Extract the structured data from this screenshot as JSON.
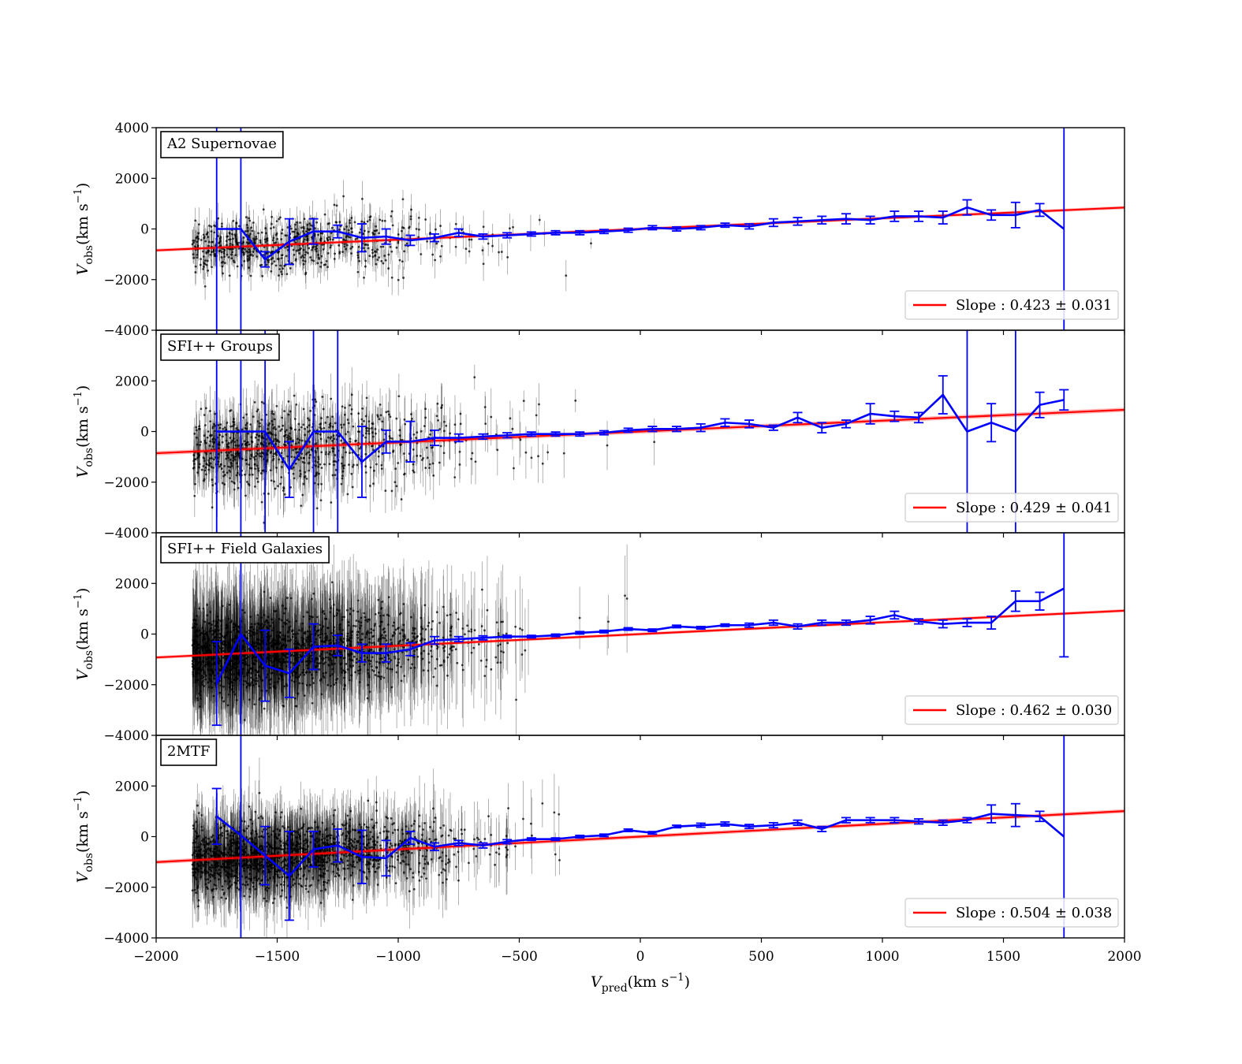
{
  "figure": {
    "xlabel_main": "V",
    "xlabel_sub": "pred",
    "xlabel_unit": "(km s",
    "xlabel_exp": "−1",
    "xlabel_close": ")",
    "ylabel_main": "V",
    "ylabel_sub": "obs",
    "ylabel_unit": "(km s",
    "ylabel_exp": "−1",
    "ylabel_close": ")",
    "legend_label": "Slope :"
  },
  "chart_data": [
    {
      "type": "scatter",
      "title": "A2 Supernovae",
      "xlim": [
        -2000,
        2000
      ],
      "ylim": [
        -4000,
        4000
      ],
      "xticks": [
        -2000,
        -1500,
        -1000,
        -500,
        0,
        500,
        1000,
        1500,
        2000
      ],
      "xtick_labels": [
        "−2000",
        "−1500",
        "−1000",
        "−500",
        "0",
        "500",
        "1000",
        "1500",
        "2000"
      ],
      "yticks": [
        -4000,
        -2000,
        0,
        2000,
        4000
      ],
      "ytick_labels": [
        "−4000",
        "−2000",
        "0",
        "2000",
        "4000"
      ],
      "scatter_spread": 550,
      "scatter_error": 500,
      "scatter_count": 650,
      "fit": {
        "slope": 0.423,
        "slope_err": 0.031,
        "slope_text": "0.423 ± 0.031",
        "color": "#ff0000"
      },
      "binned": {
        "color": "#0000ff",
        "x": [
          -1750,
          -1650,
          -1550,
          -1450,
          -1350,
          -1250,
          -1150,
          -1050,
          -950,
          -850,
          -750,
          -650,
          -550,
          -450,
          -350,
          -250,
          -150,
          -50,
          50,
          150,
          250,
          350,
          450,
          550,
          650,
          750,
          850,
          950,
          1050,
          1150,
          1250,
          1350,
          1450,
          1550,
          1650,
          1750
        ],
        "y": [
          0,
          0,
          -1200,
          -500,
          -100,
          -100,
          -350,
          -300,
          -450,
          -350,
          -150,
          -300,
          -250,
          -200,
          -150,
          -150,
          -100,
          -50,
          50,
          0,
          50,
          150,
          100,
          250,
          300,
          350,
          400,
          350,
          500,
          500,
          450,
          850,
          550,
          550,
          750,
          0
        ],
        "err": [
          9000,
          9000,
          300,
          900,
          500,
          250,
          550,
          300,
          200,
          150,
          150,
          100,
          100,
          80,
          80,
          80,
          80,
          80,
          80,
          80,
          80,
          80,
          100,
          150,
          150,
          150,
          200,
          150,
          200,
          200,
          250,
          300,
          200,
          500,
          250,
          9000
        ]
      }
    },
    {
      "type": "scatter",
      "title": "SFI++ Groups",
      "xlim": [
        -2000,
        2000
      ],
      "ylim": [
        -4000,
        4000
      ],
      "xticks": [
        -2000,
        -1500,
        -1000,
        -500,
        0,
        500,
        1000,
        1500,
        2000
      ],
      "xtick_labels": [
        "−2000",
        "−1500",
        "−1000",
        "−500",
        "0",
        "500",
        "1000",
        "1500",
        "2000"
      ],
      "yticks": [
        -4000,
        -2000,
        0,
        2000
      ],
      "ytick_labels": [
        "−4000",
        "−2000",
        "0",
        "2000"
      ],
      "scatter_spread": 800,
      "scatter_error": 800,
      "scatter_count": 850,
      "fit": {
        "slope": 0.429,
        "slope_err": 0.041,
        "slope_text": "0.429 ± 0.041",
        "color": "#ff0000"
      },
      "binned": {
        "color": "#0000ff",
        "x": [
          -1750,
          -1650,
          -1550,
          -1450,
          -1350,
          -1250,
          -1150,
          -1050,
          -950,
          -850,
          -750,
          -650,
          -550,
          -450,
          -350,
          -250,
          -150,
          -50,
          50,
          150,
          250,
          350,
          450,
          550,
          650,
          750,
          850,
          950,
          1050,
          1150,
          1250,
          1350,
          1450,
          1550,
          1650,
          1750
        ],
        "y": [
          0,
          0,
          0,
          -1500,
          0,
          0,
          -1200,
          -400,
          -400,
          -250,
          -250,
          -200,
          -150,
          -100,
          -100,
          -100,
          -50,
          50,
          100,
          100,
          150,
          350,
          300,
          150,
          550,
          150,
          300,
          700,
          600,
          550,
          1450,
          0,
          350,
          0,
          1050,
          1250
        ],
        "err": [
          9000,
          9000,
          9000,
          1100,
          9000,
          9000,
          1400,
          450,
          800,
          300,
          150,
          100,
          100,
          80,
          80,
          80,
          80,
          80,
          100,
          100,
          150,
          150,
          150,
          100,
          200,
          200,
          150,
          400,
          200,
          200,
          750,
          9000,
          750,
          9000,
          500,
          400
        ]
      }
    },
    {
      "type": "scatter",
      "title": "SFI++ Field Galaxies",
      "xlim": [
        -2000,
        2000
      ],
      "ylim": [
        -4000,
        4000
      ],
      "xticks": [
        -2000,
        -1500,
        -1000,
        -500,
        0,
        500,
        1000,
        1500,
        2000
      ],
      "xtick_labels": [
        "−2000",
        "−1500",
        "−1000",
        "−500",
        "0",
        "500",
        "1000",
        "1500",
        "2000"
      ],
      "yticks": [
        -4000,
        -2000,
        0,
        2000
      ],
      "ytick_labels": [
        "−4000",
        "−2000",
        "0",
        "2000"
      ],
      "scatter_spread": 750,
      "scatter_error": 1700,
      "scatter_count": 1700,
      "fit": {
        "slope": 0.462,
        "slope_err": 0.03,
        "slope_text": "0.462 ± 0.030",
        "color": "#ff0000"
      },
      "binned": {
        "color": "#0000ff",
        "x": [
          -1750,
          -1650,
          -1550,
          -1450,
          -1350,
          -1250,
          -1150,
          -1050,
          -950,
          -850,
          -750,
          -650,
          -550,
          -450,
          -350,
          -250,
          -150,
          -50,
          50,
          150,
          250,
          350,
          450,
          550,
          650,
          750,
          850,
          950,
          1050,
          1150,
          1250,
          1350,
          1450,
          1550,
          1650,
          1750
        ],
        "y": [
          -1950,
          0,
          -1250,
          -1550,
          -500,
          -450,
          -750,
          -750,
          -600,
          -250,
          -200,
          -150,
          -100,
          -100,
          -50,
          50,
          100,
          200,
          150,
          300,
          250,
          350,
          350,
          450,
          300,
          450,
          450,
          550,
          750,
          500,
          400,
          450,
          450,
          1300,
          1300,
          1800
        ],
        "err": [
          1650,
          9000,
          1400,
          950,
          900,
          400,
          350,
          350,
          250,
          150,
          100,
          80,
          50,
          50,
          50,
          50,
          50,
          50,
          50,
          50,
          50,
          50,
          80,
          100,
          100,
          100,
          100,
          150,
          150,
          100,
          150,
          150,
          250,
          400,
          350,
          2700
        ]
      }
    },
    {
      "type": "scatter",
      "title": "2MTF",
      "xlim": [
        -2000,
        2000
      ],
      "ylim": [
        -4000,
        4000
      ],
      "xticks": [
        -2000,
        -1500,
        -1000,
        -500,
        0,
        500,
        1000,
        1500,
        2000
      ],
      "xtick_labels": [
        "−2000",
        "−1500",
        "−1000",
        "−500",
        "0",
        "500",
        "1000",
        "1500",
        "2000"
      ],
      "yticks": [
        -4000,
        -2000,
        0,
        2000
      ],
      "ytick_labels": [
        "−4000",
        "−2000",
        "0",
        "2000"
      ],
      "scatter_spread": 650,
      "scatter_error": 1100,
      "scatter_count": 1600,
      "fit": {
        "slope": 0.504,
        "slope_err": 0.038,
        "slope_text": "0.504 ± 0.038",
        "color": "#ff0000"
      },
      "binned": {
        "color": "#0000ff",
        "x": [
          -1750,
          -1650,
          -1550,
          -1450,
          -1350,
          -1250,
          -1150,
          -1050,
          -950,
          -850,
          -750,
          -650,
          -550,
          -450,
          -350,
          -250,
          -150,
          -50,
          50,
          150,
          250,
          350,
          450,
          550,
          650,
          750,
          850,
          950,
          1050,
          1150,
          1250,
          1350,
          1450,
          1550,
          1650,
          1750
        ],
        "y": [
          800,
          50,
          -750,
          -1550,
          -500,
          -350,
          -800,
          -850,
          -50,
          -400,
          -250,
          -350,
          -200,
          -100,
          -100,
          0,
          50,
          250,
          150,
          400,
          450,
          500,
          400,
          450,
          550,
          300,
          650,
          650,
          650,
          600,
          550,
          650,
          900,
          850,
          800,
          0
        ],
        "err": [
          1100,
          9000,
          1150,
          1750,
          700,
          650,
          1050,
          700,
          250,
          150,
          100,
          100,
          80,
          50,
          50,
          50,
          50,
          50,
          50,
          50,
          80,
          80,
          80,
          100,
          100,
          100,
          100,
          100,
          100,
          100,
          100,
          100,
          350,
          450,
          200,
          9000
        ]
      }
    }
  ]
}
